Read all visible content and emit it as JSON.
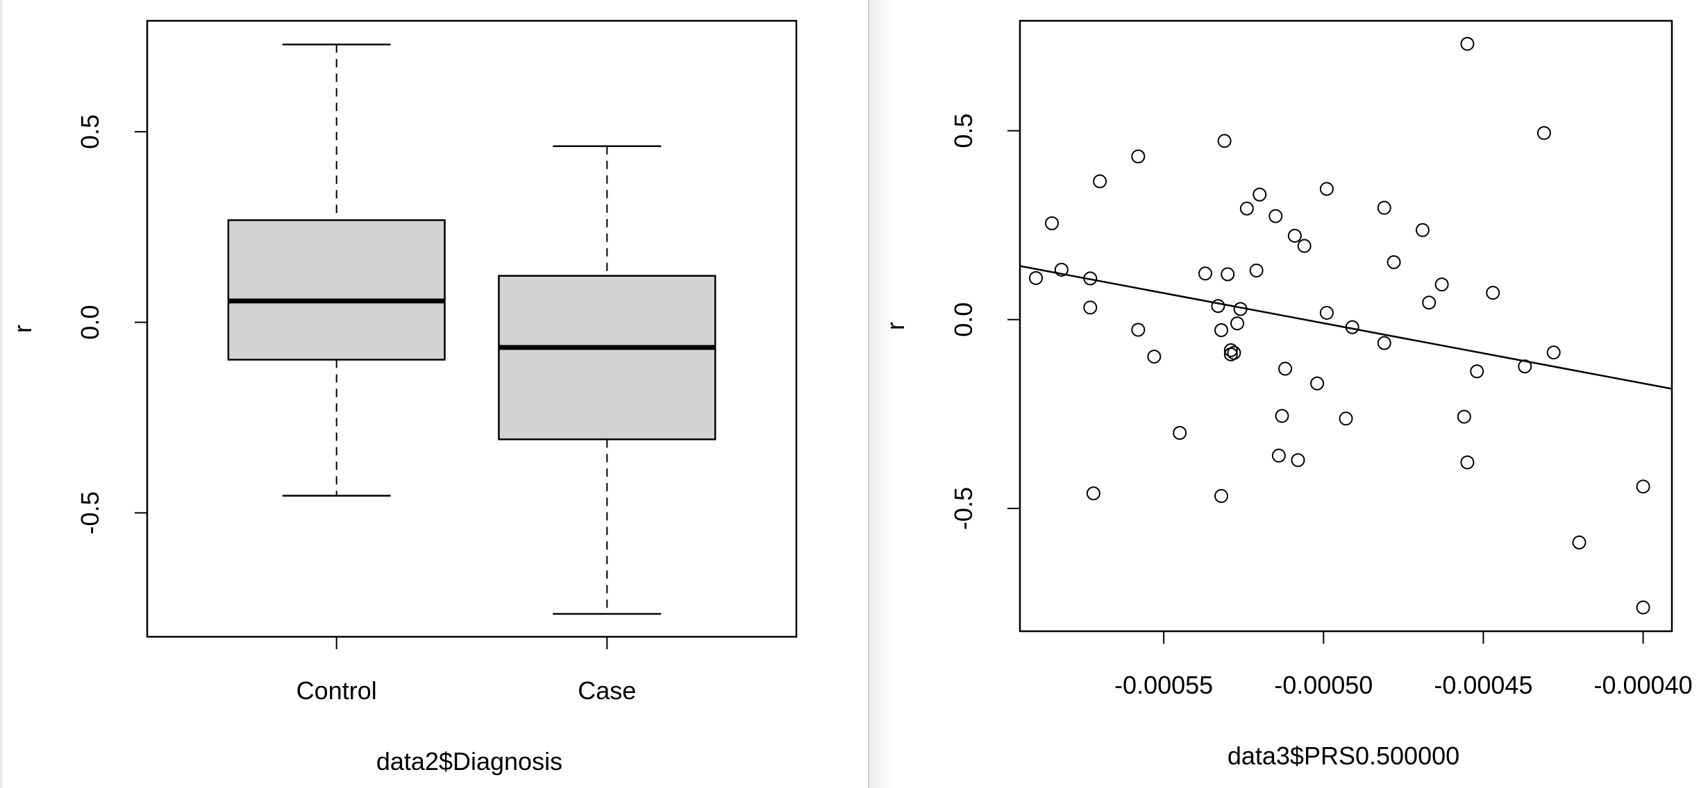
{
  "chart_data": [
    {
      "type": "box",
      "xlabel": "data2$Diagnosis",
      "ylabel": "r",
      "ylim": [
        -0.825,
        0.791
      ],
      "yticks": [
        "-0.5",
        "0.0",
        "0.5"
      ],
      "ytick_values": [
        -0.5,
        0.0,
        0.5
      ],
      "categories": [
        "Control",
        "Case"
      ],
      "boxes": [
        {
          "name": "Control",
          "whisker_low": -0.455,
          "q1": -0.098,
          "median": 0.056,
          "q3": 0.268,
          "whisker_high": 0.729
        },
        {
          "name": "Case",
          "whisker_low": -0.765,
          "q1": -0.307,
          "median": -0.066,
          "q3": 0.122,
          "whisker_high": 0.462
        }
      ],
      "box_color": "#d3d3d3",
      "grid": false
    },
    {
      "type": "scatter",
      "xlabel": "data3$PRS0.500000",
      "ylabel": "r",
      "xlim": [
        -0.000595,
        -0.000391
      ],
      "ylim": [
        -0.825,
        0.791
      ],
      "xticks": [
        "-0.00055",
        "-0.00050",
        "-0.00045",
        "-0.00040"
      ],
      "xtick_values": [
        -0.00055,
        -0.0005,
        -0.00045,
        -0.0004
      ],
      "yticks": [
        "-0.5",
        "0.0",
        "0.5"
      ],
      "ytick_values": [
        -0.5,
        0.0,
        0.5
      ],
      "grid": false,
      "regression_line": {
        "slope": -1593,
        "intercept": -0.806
      },
      "points": [
        [
          -0.00059,
          0.11
        ],
        [
          -0.000585,
          0.255
        ],
        [
          -0.000582,
          0.132
        ],
        [
          -0.000573,
          0.109
        ],
        [
          -0.000573,
          0.032
        ],
        [
          -0.000572,
          -0.46
        ],
        [
          -0.00057,
          0.366
        ],
        [
          -0.000558,
          0.432
        ],
        [
          -0.000558,
          -0.027
        ],
        [
          -0.000553,
          -0.098
        ],
        [
          -0.000545,
          -0.3
        ],
        [
          -0.000537,
          0.122
        ],
        [
          -0.000533,
          0.036
        ],
        [
          -0.000532,
          -0.467
        ],
        [
          -0.000532,
          -0.028
        ],
        [
          -0.000531,
          0.473
        ],
        [
          -0.00053,
          0.12
        ],
        [
          -0.000529,
          -0.092
        ],
        [
          -0.000529,
          -0.081
        ],
        [
          -0.000528,
          -0.088
        ],
        [
          -0.000527,
          -0.01
        ],
        [
          -0.000526,
          0.028
        ],
        [
          -0.000524,
          0.294
        ],
        [
          -0.000521,
          0.13
        ],
        [
          -0.00052,
          0.331
        ],
        [
          -0.000515,
          0.274
        ],
        [
          -0.000514,
          -0.36
        ],
        [
          -0.000513,
          -0.255
        ],
        [
          -0.000512,
          -0.13
        ],
        [
          -0.000509,
          0.222
        ],
        [
          -0.000508,
          -0.372
        ],
        [
          -0.000506,
          0.195
        ],
        [
          -0.000502,
          -0.169
        ],
        [
          -0.000499,
          0.018
        ],
        [
          -0.000499,
          0.346
        ],
        [
          -0.000493,
          -0.262
        ],
        [
          -0.000491,
          -0.02
        ],
        [
          -0.000481,
          0.296
        ],
        [
          -0.000481,
          -0.062
        ],
        [
          -0.000478,
          0.152
        ],
        [
          -0.000469,
          0.237
        ],
        [
          -0.000467,
          0.045
        ],
        [
          -0.000463,
          0.093
        ],
        [
          -0.000456,
          -0.257
        ],
        [
          -0.000455,
          0.73
        ],
        [
          -0.000455,
          -0.378
        ],
        [
          -0.000452,
          -0.137
        ],
        [
          -0.000447,
          0.071
        ],
        [
          -0.000437,
          -0.124
        ],
        [
          -0.000431,
          0.494
        ],
        [
          -0.000428,
          -0.087
        ],
        [
          -0.00042,
          -0.59
        ],
        [
          -0.0004,
          -0.442
        ],
        [
          -0.0004,
          -0.762
        ]
      ]
    }
  ]
}
